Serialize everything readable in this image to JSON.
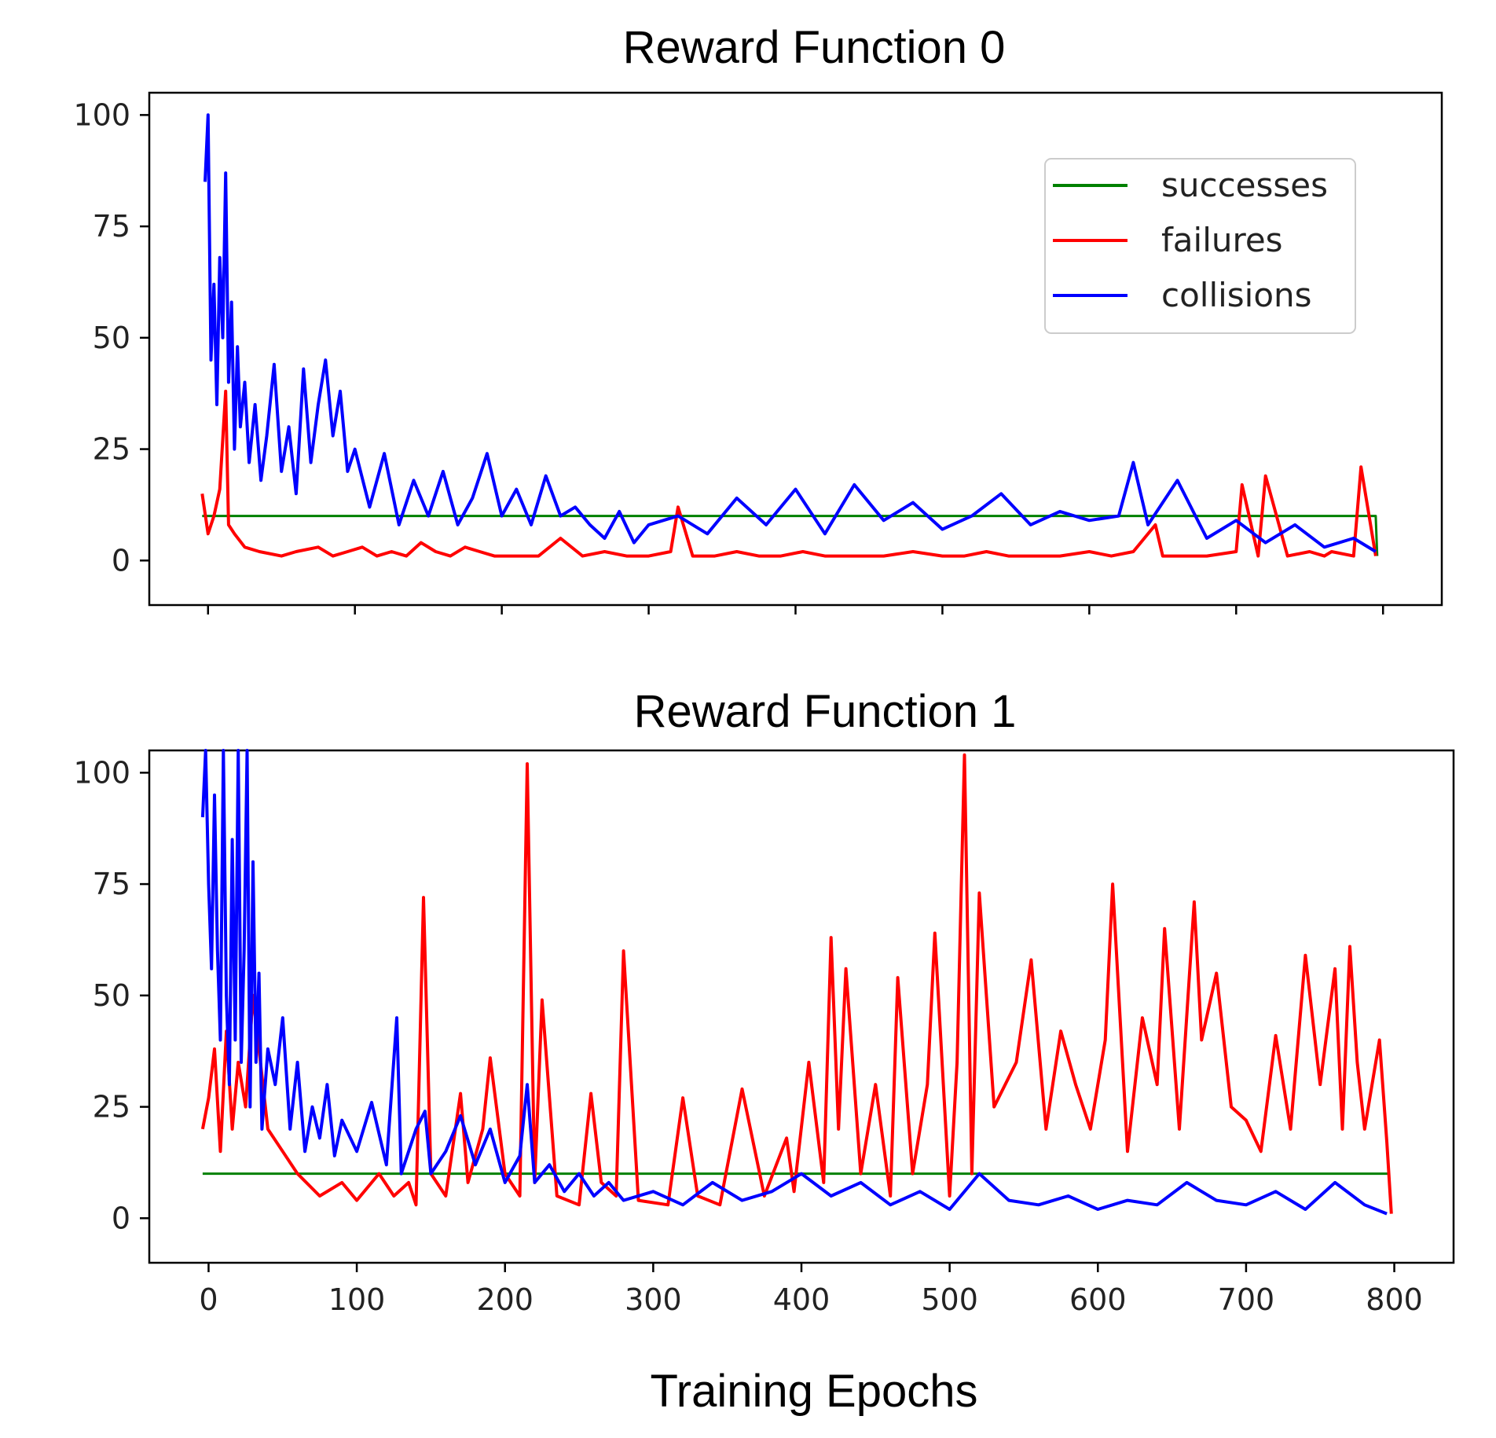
{
  "chart_data": [
    {
      "type": "line",
      "title": "Reward Function 0",
      "xlabel": "",
      "ylabel": "",
      "xlim": [
        -40,
        840
      ],
      "ylim": [
        -10,
        105
      ],
      "xticks": [
        0,
        100,
        200,
        300,
        400,
        500,
        600,
        700,
        800
      ],
      "xtick_labels_visible": false,
      "yticks": [
        0,
        25,
        50,
        75,
        100
      ],
      "ytick_labels": [
        "0",
        "25",
        "50",
        "75",
        "100"
      ],
      "legend": {
        "position": "upper right",
        "entries": [
          "successes",
          "failures",
          "collisions"
        ]
      },
      "grid": false,
      "series": [
        {
          "name": "successes",
          "color": "#008000",
          "x": [
            -4,
            10,
            795,
            796
          ],
          "y": [
            10,
            10,
            10,
            1
          ]
        },
        {
          "name": "failures",
          "color": "#ff0000",
          "x": [
            -4,
            0,
            4,
            8,
            12,
            14,
            18,
            25,
            35,
            50,
            60,
            75,
            85,
            95,
            105,
            115,
            125,
            135,
            145,
            155,
            165,
            175,
            185,
            195,
            210,
            225,
            240,
            255,
            270,
            285,
            300,
            315,
            320,
            330,
            345,
            360,
            375,
            390,
            405,
            420,
            440,
            460,
            480,
            500,
            515,
            530,
            545,
            560,
            580,
            600,
            615,
            630,
            645,
            650,
            665,
            680,
            700,
            704,
            715,
            720,
            735,
            750,
            760,
            765,
            780,
            785,
            795
          ],
          "y": [
            15,
            6,
            10,
            16,
            38,
            8,
            6,
            3,
            2,
            1,
            2,
            3,
            1,
            2,
            3,
            1,
            2,
            1,
            4,
            2,
            1,
            3,
            2,
            1,
            1,
            1,
            5,
            1,
            2,
            1,
            1,
            2,
            12,
            1,
            1,
            2,
            1,
            1,
            2,
            1,
            1,
            1,
            2,
            1,
            1,
            2,
            1,
            1,
            1,
            2,
            1,
            2,
            8,
            1,
            1,
            1,
            2,
            17,
            1,
            19,
            1,
            2,
            1,
            2,
            1,
            21,
            1
          ]
        },
        {
          "name": "collisions",
          "color": "#0000ff",
          "x": [
            -2,
            0,
            2,
            4,
            6,
            8,
            10,
            12,
            14,
            16,
            18,
            20,
            22,
            25,
            28,
            32,
            36,
            40,
            45,
            50,
            55,
            60,
            65,
            70,
            75,
            80,
            85,
            90,
            95,
            100,
            110,
            120,
            130,
            140,
            150,
            160,
            170,
            180,
            190,
            200,
            210,
            220,
            230,
            240,
            250,
            260,
            270,
            280,
            290,
            300,
            320,
            340,
            360,
            380,
            400,
            420,
            440,
            460,
            480,
            500,
            520,
            540,
            560,
            580,
            600,
            620,
            630,
            640,
            660,
            680,
            700,
            720,
            740,
            760,
            780,
            795
          ],
          "y": [
            85,
            100,
            45,
            62,
            35,
            68,
            50,
            87,
            40,
            58,
            25,
            48,
            30,
            40,
            22,
            35,
            18,
            28,
            44,
            20,
            30,
            15,
            43,
            22,
            35,
            45,
            28,
            38,
            20,
            25,
            12,
            24,
            8,
            18,
            10,
            20,
            8,
            14,
            24,
            10,
            16,
            8,
            19,
            10,
            12,
            8,
            5,
            11,
            4,
            8,
            10,
            6,
            14,
            8,
            16,
            6,
            17,
            9,
            13,
            7,
            10,
            15,
            8,
            11,
            9,
            10,
            22,
            8,
            18,
            5,
            9,
            4,
            8,
            3,
            5,
            2
          ]
        }
      ]
    },
    {
      "type": "line",
      "title": "Reward Function 1",
      "xlabel": "Training Epochs",
      "ylabel": "",
      "xlim": [
        -40,
        840
      ],
      "ylim": [
        -10,
        105
      ],
      "xticks": [
        0,
        100,
        200,
        300,
        400,
        500,
        600,
        700,
        800
      ],
      "xtick_labels": [
        "0",
        "100",
        "200",
        "300",
        "400",
        "500",
        "600",
        "700",
        "800"
      ],
      "yticks": [
        0,
        25,
        50,
        75,
        100
      ],
      "ytick_labels": [
        "0",
        "25",
        "50",
        "75",
        "100"
      ],
      "grid": false,
      "series": [
        {
          "name": "successes",
          "color": "#008000",
          "x": [
            -4,
            796
          ],
          "y": [
            10,
            10
          ]
        },
        {
          "name": "failures",
          "color": "#ff0000",
          "x": [
            -4,
            0,
            4,
            8,
            12,
            16,
            20,
            25,
            30,
            40,
            50,
            60,
            75,
            90,
            100,
            115,
            125,
            135,
            140,
            145,
            150,
            160,
            170,
            175,
            185,
            190,
            200,
            210,
            215,
            220,
            225,
            235,
            250,
            258,
            265,
            275,
            280,
            290,
            310,
            320,
            330,
            345,
            360,
            375,
            390,
            395,
            405,
            415,
            420,
            425,
            430,
            440,
            450,
            460,
            465,
            475,
            485,
            490,
            500,
            505,
            510,
            515,
            520,
            530,
            545,
            555,
            565,
            575,
            585,
            595,
            605,
            610,
            620,
            630,
            640,
            645,
            655,
            665,
            670,
            680,
            690,
            700,
            710,
            720,
            730,
            740,
            750,
            760,
            765,
            770,
            775,
            780,
            790,
            795,
            798
          ],
          "y": [
            20,
            27,
            38,
            15,
            42,
            20,
            35,
            25,
            50,
            20,
            15,
            10,
            5,
            8,
            4,
            10,
            5,
            8,
            3,
            72,
            10,
            5,
            28,
            8,
            20,
            36,
            10,
            5,
            102,
            8,
            49,
            5,
            3,
            28,
            8,
            5,
            60,
            4,
            3,
            27,
            5,
            3,
            29,
            5,
            18,
            6,
            35,
            8,
            63,
            20,
            56,
            10,
            30,
            5,
            54,
            10,
            30,
            64,
            5,
            35,
            104,
            10,
            73,
            25,
            35,
            58,
            20,
            42,
            30,
            20,
            40,
            75,
            15,
            45,
            30,
            65,
            20,
            71,
            40,
            55,
            25,
            22,
            15,
            41,
            20,
            59,
            30,
            56,
            20,
            61,
            35,
            20,
            40,
            17,
            1
          ]
        },
        {
          "name": "collisions",
          "color": "#0000ff",
          "x": [
            -4,
            -2,
            0,
            2,
            4,
            6,
            8,
            10,
            12,
            14,
            16,
            18,
            20,
            22,
            24,
            26,
            28,
            30,
            32,
            34,
            36,
            40,
            45,
            50,
            55,
            60,
            65,
            70,
            75,
            80,
            85,
            90,
            100,
            110,
            120,
            127,
            130,
            140,
            146,
            150,
            160,
            170,
            180,
            190,
            200,
            210,
            215,
            220,
            230,
            240,
            250,
            260,
            270,
            280,
            300,
            320,
            340,
            360,
            380,
            400,
            420,
            440,
            460,
            480,
            500,
            520,
            540,
            560,
            580,
            600,
            620,
            640,
            660,
            680,
            700,
            720,
            740,
            760,
            780,
            795
          ],
          "y": [
            90,
            105,
            75,
            56,
            95,
            60,
            40,
            105,
            50,
            30,
            85,
            40,
            105,
            35,
            60,
            105,
            25,
            80,
            35,
            55,
            20,
            38,
            30,
            45,
            20,
            35,
            15,
            25,
            18,
            30,
            14,
            22,
            15,
            26,
            12,
            45,
            10,
            20,
            24,
            10,
            15,
            23,
            12,
            20,
            8,
            14,
            30,
            8,
            12,
            6,
            10,
            5,
            8,
            4,
            6,
            3,
            8,
            4,
            6,
            10,
            5,
            8,
            3,
            6,
            2,
            10,
            4,
            3,
            5,
            2,
            4,
            3,
            8,
            4,
            3,
            6,
            2,
            8,
            3,
            1
          ]
        }
      ]
    }
  ]
}
